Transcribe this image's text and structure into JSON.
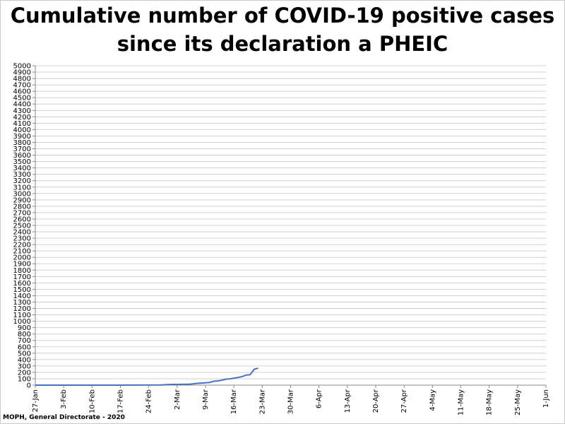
{
  "chart_data": {
    "type": "line",
    "title_line1": "Cumulative number of COVID-19 positive cases",
    "title_line2": "since its declaration a PHEIC",
    "xlabel": "",
    "ylabel": "",
    "ylim": [
      0,
      5000
    ],
    "ytick_step": 100,
    "x_ticks": [
      "27-Jan",
      "3-Feb",
      "10-Feb",
      "17-Feb",
      "24-Feb",
      "2-Mar",
      "9-Mar",
      "16-Mar",
      "23-Mar",
      "30-Mar",
      "6-Apr",
      "13-Apr",
      "20-Apr",
      "27-Apr",
      "4-May",
      "11-May",
      "18-May",
      "25-May",
      "1-Jun"
    ],
    "x_range_days": [
      0,
      126
    ],
    "grid": "horizontal",
    "line_color": "#4472c4",
    "series": [
      {
        "x": [
          "27-Jan",
          "1-Feb",
          "8-Feb",
          "15-Feb",
          "21-Feb",
          "27-Feb",
          "29-Feb",
          "1-Mar",
          "4-Mar",
          "5-Mar",
          "7-Mar",
          "8-Mar",
          "10-Mar",
          "11-Mar",
          "12-Mar",
          "13-Mar",
          "14-Mar",
          "15-Mar",
          "16-Mar",
          "17-Mar",
          "18-Mar",
          "19-Mar",
          "20-Mar",
          "21-Mar"
        ],
        "values": [
          0,
          0,
          0,
          0,
          1,
          2,
          10,
          11,
          13,
          13,
          28,
          32,
          41,
          61,
          66,
          77,
          93,
          99,
          109,
          120,
          133,
          157,
          163,
          248
        ]
      }
    ],
    "extra_point": {
      "x": "22-Mar",
      "value": 267
    }
  },
  "footer": {
    "source": "MOPH, General Directorate - 2020"
  }
}
